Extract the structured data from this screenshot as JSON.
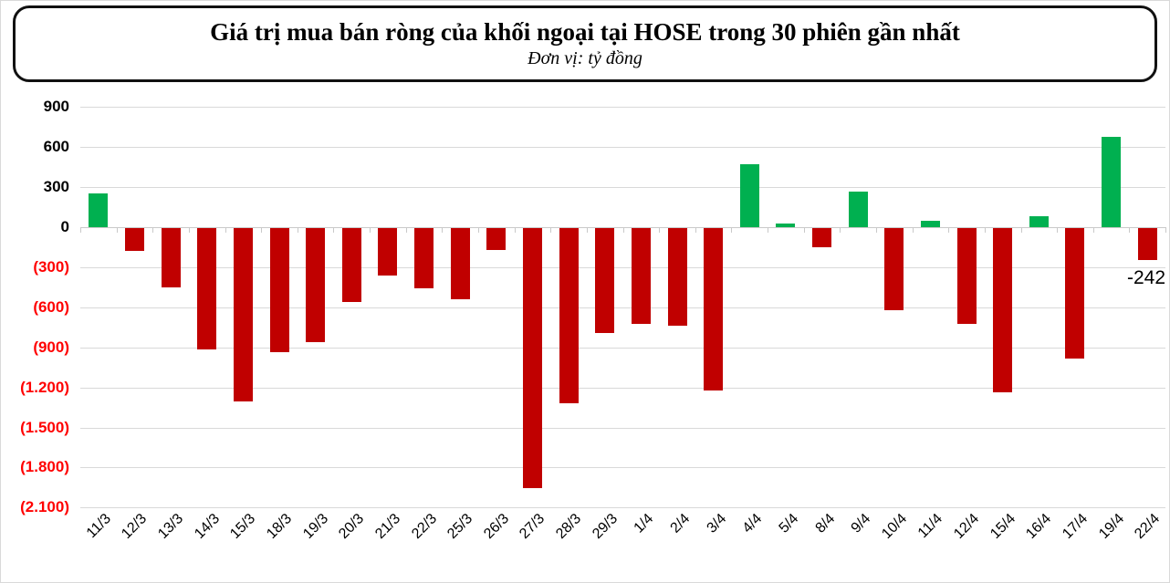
{
  "title": "Giá trị mua bán ròng của khối ngoại tại HOSE trong 30 phiên gần nhất",
  "subtitle": "Đơn vị: tỷ đồng",
  "colors": {
    "positive_bar": "#00b050",
    "negative_bar": "#c00000",
    "negative_axis_label": "#ff0000",
    "positive_axis_label": "#000000",
    "gridline": "#d9d9d9"
  },
  "chart_data": {
    "type": "bar",
    "title": "Giá trị mua bán ròng của khối ngoại tại HOSE trong 30 phiên gần nhất",
    "subtitle": "Đơn vị: tỷ đồng",
    "ylabel": "tỷ đồng",
    "xlabel": "",
    "grid": true,
    "legend": "none",
    "ylim": [
      -2100,
      900
    ],
    "ytick_step": 300,
    "ytick_labels": [
      "900",
      "600",
      "300",
      "0",
      "(300)",
      "(600)",
      "(900)",
      "(1.200)",
      "(1.500)",
      "(1.800)",
      "(2.100)"
    ],
    "categories": [
      "11/3",
      "12/3",
      "13/3",
      "14/3",
      "15/3",
      "18/3",
      "19/3",
      "20/3",
      "21/3",
      "22/3",
      "25/3",
      "26/3",
      "27/3",
      "28/3",
      "29/3",
      "1/4",
      "2/4",
      "3/4",
      "4/4",
      "5/4",
      "8/4",
      "9/4",
      "10/4",
      "11/4",
      "12/4",
      "15/4",
      "16/4",
      "17/4",
      "19/4",
      "22/4"
    ],
    "values": [
      250,
      -170,
      -445,
      -910,
      -1300,
      -930,
      -855,
      -555,
      -355,
      -450,
      -530,
      -165,
      -1950,
      -1315,
      -785,
      -715,
      -730,
      -1215,
      475,
      30,
      -145,
      265,
      -615,
      50,
      -720,
      -1230,
      80,
      -975,
      680,
      -242
    ],
    "annotations": [
      {
        "category": "22/4",
        "text": "-242"
      }
    ]
  }
}
